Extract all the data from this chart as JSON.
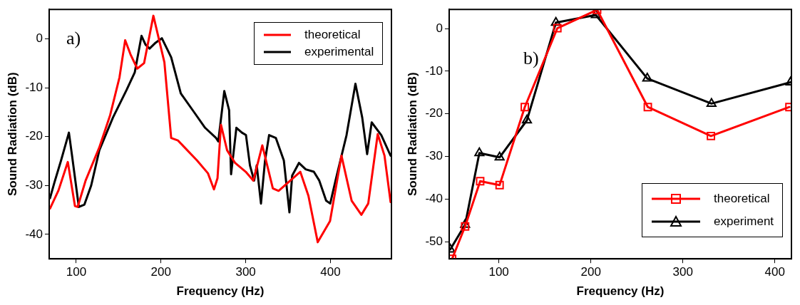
{
  "chart_data": [
    {
      "type": "line",
      "xlabel": "Frequency (Hz)",
      "ylabel": "Sound Radiation (dB)",
      "annotations": [
        "a)"
      ],
      "xlim": [
        68,
        472
      ],
      "xticks": [
        100,
        200,
        300,
        400
      ],
      "ylim": [
        -45,
        6
      ],
      "yticks": [
        -40,
        -30,
        -20,
        -10,
        0
      ],
      "grid": false,
      "legend": "top right",
      "marker": "none",
      "line_style": "solid",
      "series": [
        {
          "name": "theoretical",
          "color": "#ff0000",
          "x": [
            69,
            79,
            90,
            98.4,
            101.6,
            111,
            127,
            140,
            151,
            157.7,
            164,
            172,
            180,
            191,
            204,
            212,
            220,
            242.6,
            255.4,
            262.5,
            266.7,
            270.8,
            278,
            287.5,
            300,
            309,
            319.6,
            332,
            338.8,
            364.4,
            374,
            385,
            399.5,
            413,
            425,
            436.5,
            444.6,
            455.8,
            463.8,
            471
          ],
          "values": [
            -34.7,
            -31,
            -25.2,
            -34.2,
            -34.4,
            -29,
            -22.3,
            -15.6,
            -7.9,
            -0.3,
            -3.2,
            -6.1,
            -5,
            4.7,
            -4.8,
            -20.3,
            -20.8,
            -24.9,
            -27.5,
            -30.8,
            -28.5,
            -17.6,
            -22.8,
            -25.4,
            -27.2,
            -29,
            -21.8,
            -30.6,
            -31.1,
            -27.2,
            -32.1,
            -41.6,
            -37.3,
            -23.9,
            -33.1,
            -36,
            -33.7,
            -19.5,
            -23.9,
            -33.4
          ]
        },
        {
          "name": "experimental",
          "color": "#000000",
          "x": [
            69,
            74,
            82,
            91.3,
            95,
            103,
            109.6,
            117.6,
            127.2,
            143.3,
            159.3,
            169,
            177,
            181.7,
            186.5,
            193,
            201,
            212,
            223.4,
            239.4,
            252,
            265,
            267.6,
            274.7,
            280.4,
            282.7,
            289,
            295.5,
            300.3,
            305,
            309.9,
            313,
            318,
            322.8,
            327.6,
            335.6,
            345,
            351.6,
            354.8,
            362.8,
            370.8,
            380.4,
            386.8,
            394.9,
            399.7,
            406,
            419,
            429.5,
            437.5,
            443.3,
            448.7,
            460,
            471
          ],
          "values": [
            -32.6,
            -29.5,
            -24.9,
            -19.2,
            -23.9,
            -34.4,
            -33.9,
            -30,
            -22.8,
            -16.1,
            -10.5,
            -6.9,
            0.6,
            -1.2,
            -2,
            -0.9,
            0.1,
            -3.8,
            -11.2,
            -15.1,
            -18.2,
            -20.3,
            -21,
            -10.7,
            -14.6,
            -27.7,
            -18.2,
            -19.2,
            -19.7,
            -25.9,
            -29,
            -25.9,
            -33.7,
            -24.9,
            -19.7,
            -20.3,
            -24.9,
            -35.5,
            -28,
            -25.4,
            -26.7,
            -27.2,
            -29,
            -33.1,
            -33.7,
            -29,
            -19.7,
            -9.2,
            -16.1,
            -23.6,
            -17.1,
            -19.7,
            -23.9
          ]
        }
      ]
    },
    {
      "type": "line",
      "xlabel": "Frequency (Hz)",
      "ylabel": "Sound Radiation (dB)",
      "annotations": [
        "b)"
      ],
      "xlim": [
        46,
        418
      ],
      "xticks": [
        100,
        200,
        300,
        400
      ],
      "ylim": [
        -54,
        4.5
      ],
      "yticks": [
        -50,
        -40,
        -30,
        -20,
        -10,
        0
      ],
      "grid": false,
      "legend": "bottom right",
      "line_style": "solid",
      "series": [
        {
          "name": "theoretical",
          "color": "#ff0000",
          "marker": "square",
          "x": [
            49.2,
            63.3,
            79.7,
            100.8,
            128.2,
            163.6,
            206.8,
            261.9,
            330.5,
            415.8
          ],
          "values": [
            -54,
            -46.4,
            -35.8,
            -36.7,
            -18.4,
            0.1,
            4.4,
            -18.4,
            -25.2,
            -18.4
          ]
        },
        {
          "name": "experiment",
          "color": "#000000",
          "marker": "triangle",
          "x": [
            47.2,
            63.3,
            78.8,
            100.8,
            130.5,
            162,
            205.4,
            261.3,
            331.1,
            417
          ],
          "values": [
            -51.8,
            -46,
            -29.2,
            -30.2,
            -21.5,
            1.4,
            3.2,
            -11.7,
            -17.6,
            -12.6
          ]
        }
      ]
    }
  ]
}
